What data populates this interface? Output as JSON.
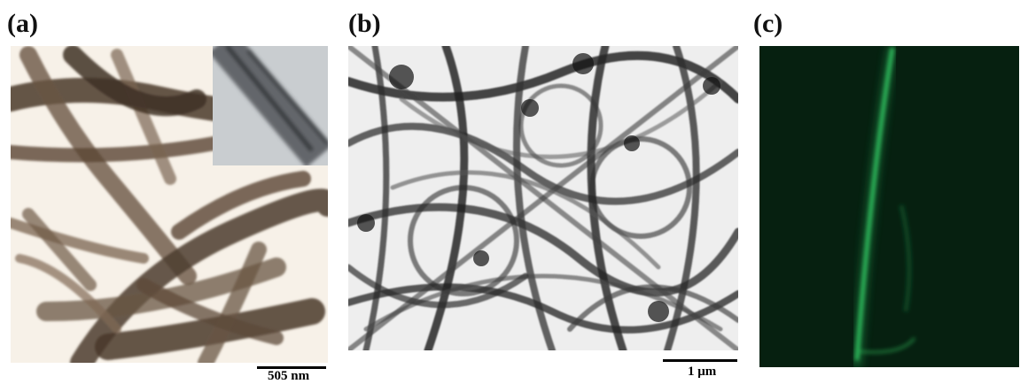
{
  "figure": {
    "panels": [
      {
        "label": "(a)",
        "scale_bar": "505 nm",
        "description": "TEM image of nanotubes with inset"
      },
      {
        "label": "(b)",
        "scale_bar": "1 μm",
        "description": "TEM image of dense nanotube network"
      },
      {
        "label": "(c)",
        "scale_bar": "",
        "description": "fluorescence image of a single tube"
      }
    ],
    "colors": {
      "panel_a_tint": "#5a4a3a",
      "panel_b_tint": "#202020",
      "panel_c_background": "#062010",
      "panel_c_signal": "#38d66a"
    }
  }
}
